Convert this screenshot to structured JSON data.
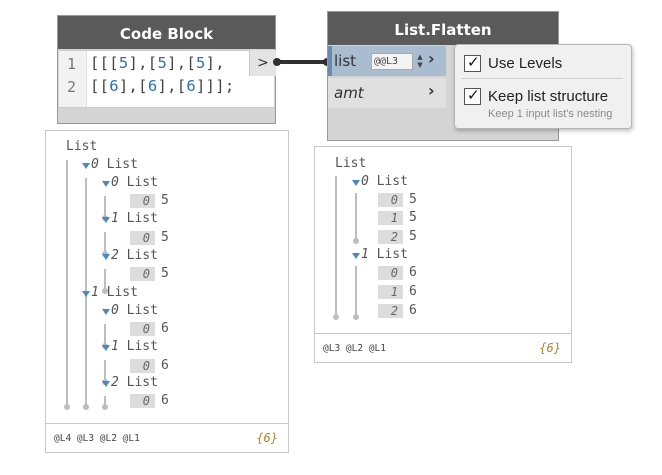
{
  "code_block": {
    "title": "Code Block",
    "line_numbers": [
      "1",
      "2"
    ],
    "port_symbol": ">",
    "line1": [
      "[[[",
      "5",
      "],[",
      "5",
      "],[",
      "5",
      "],"
    ],
    "line2": [
      "[[",
      "6",
      "],[",
      "6",
      "],[",
      "6",
      "]]];"
    ]
  },
  "list_flatten": {
    "title": "List.Flatten",
    "inputs": [
      {
        "label": "list",
        "lacing": "@@L3",
        "arrow": "›"
      },
      {
        "label": "amt",
        "arrow": "›"
      }
    ]
  },
  "level_popup": {
    "use_levels": {
      "label": "Use Levels",
      "checked": true,
      "mark": "✓"
    },
    "keep_structure": {
      "label": "Keep list structure",
      "checked": true,
      "mark": "✓"
    },
    "hint": "Keep 1 input list's nesting"
  },
  "preview_left": {
    "root": "List",
    "groups": [
      {
        "index": "0",
        "label": "List",
        "sublists": [
          {
            "index": "0",
            "label": "List",
            "items": [
              {
                "index": "0",
                "value": "5"
              }
            ]
          },
          {
            "index": "1",
            "label": "List",
            "items": [
              {
                "index": "0",
                "value": "5"
              }
            ]
          },
          {
            "index": "2",
            "label": "List",
            "items": [
              {
                "index": "0",
                "value": "5"
              }
            ]
          }
        ]
      },
      {
        "index": "1",
        "label": "List",
        "sublists": [
          {
            "index": "0",
            "label": "List",
            "items": [
              {
                "index": "0",
                "value": "6"
              }
            ]
          },
          {
            "index": "1",
            "label": "List",
            "items": [
              {
                "index": "0",
                "value": "6"
              }
            ]
          },
          {
            "index": "2",
            "label": "List",
            "items": [
              {
                "index": "0",
                "value": "6"
              }
            ]
          }
        ]
      }
    ],
    "levels": "@L4 @L3 @L2 @L1",
    "count": "{6}"
  },
  "preview_right": {
    "root": "List",
    "groups": [
      {
        "index": "0",
        "label": "List",
        "items": [
          {
            "index": "0",
            "value": "5"
          },
          {
            "index": "1",
            "value": "5"
          },
          {
            "index": "2",
            "value": "5"
          }
        ]
      },
      {
        "index": "1",
        "label": "List",
        "items": [
          {
            "index": "0",
            "value": "6"
          },
          {
            "index": "1",
            "value": "6"
          },
          {
            "index": "2",
            "value": "6"
          }
        ]
      }
    ],
    "levels": "@L3 @L2 @L1",
    "count": "{6}"
  },
  "colors": {
    "node_title_bg": "#5a5a5a",
    "node_body_bg": "#d4d4d4",
    "selected_port_bg": "#a9bcd0",
    "number_blue": "#2a6fbd",
    "count_color": "#b5832a",
    "tree_arrow": "#4c88c4"
  }
}
